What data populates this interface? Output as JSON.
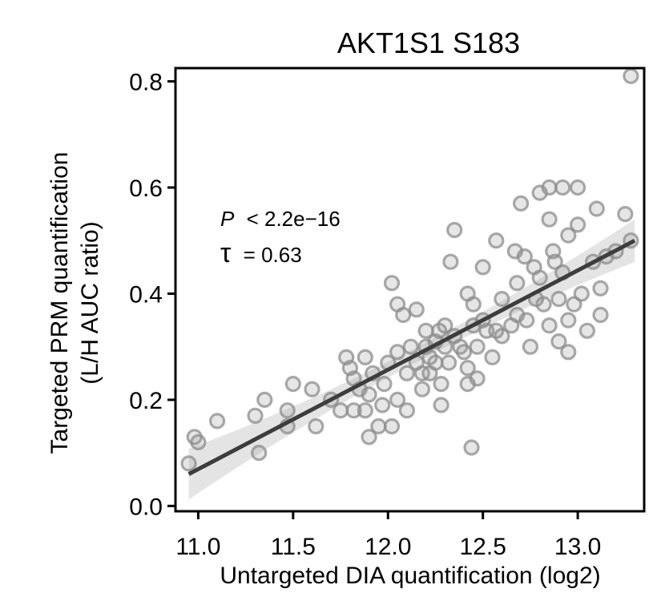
{
  "chart_data": {
    "type": "scatter",
    "title": "AKT1S1 S183",
    "xlabel": "Untargeted DIA quantification (log2)",
    "ylabel_line1": "Targeted PRM quantification",
    "ylabel_line2": "(L/H AUC ratio)",
    "xlim": [
      10.88,
      13.35
    ],
    "ylim": [
      -0.01,
      0.825
    ],
    "xticks": [
      11.0,
      11.5,
      12.0,
      12.5,
      13.0
    ],
    "xtick_labels": [
      "11.0",
      "11.5",
      "12.0",
      "12.5",
      "13.0"
    ],
    "yticks": [
      0.0,
      0.2,
      0.4,
      0.6,
      0.8
    ],
    "ytick_labels": [
      "0.0",
      "0.2",
      "0.4",
      "0.6",
      "0.8"
    ],
    "annotation": {
      "p_symbol": "P",
      "p_text": "< 2.2e−16",
      "tau_symbol": "τ",
      "tau_text": "= 0.63"
    },
    "fit_line": {
      "x": [
        10.95,
        13.3
      ],
      "y": [
        0.06,
        0.5
      ]
    },
    "colors": {
      "points": "#8c8c8c",
      "fit": "#3d3d3d",
      "band": "#d9d9d9",
      "axis": "#000000"
    },
    "points": [
      [
        10.95,
        0.08
      ],
      [
        10.98,
        0.13
      ],
      [
        11.0,
        0.12
      ],
      [
        11.1,
        0.16
      ],
      [
        11.3,
        0.17
      ],
      [
        11.32,
        0.1
      ],
      [
        11.35,
        0.2
      ],
      [
        11.47,
        0.18
      ],
      [
        11.47,
        0.15
      ],
      [
        11.5,
        0.23
      ],
      [
        11.6,
        0.22
      ],
      [
        11.62,
        0.15
      ],
      [
        11.7,
        0.2
      ],
      [
        11.75,
        0.18
      ],
      [
        11.78,
        0.28
      ],
      [
        11.8,
        0.26
      ],
      [
        11.82,
        0.24
      ],
      [
        11.82,
        0.18
      ],
      [
        11.85,
        0.22
      ],
      [
        11.88,
        0.28
      ],
      [
        11.88,
        0.18
      ],
      [
        11.9,
        0.21
      ],
      [
        11.9,
        0.13
      ],
      [
        11.92,
        0.25
      ],
      [
        11.95,
        0.15
      ],
      [
        11.97,
        0.19
      ],
      [
        11.98,
        0.23
      ],
      [
        12.0,
        0.27
      ],
      [
        12.02,
        0.42
      ],
      [
        12.02,
        0.15
      ],
      [
        12.05,
        0.38
      ],
      [
        12.05,
        0.29
      ],
      [
        12.05,
        0.2
      ],
      [
        12.08,
        0.36
      ],
      [
        12.1,
        0.25
      ],
      [
        12.1,
        0.18
      ],
      [
        12.12,
        0.3
      ],
      [
        12.15,
        0.37
      ],
      [
        12.15,
        0.27
      ],
      [
        12.18,
        0.25
      ],
      [
        12.18,
        0.22
      ],
      [
        12.2,
        0.33
      ],
      [
        12.2,
        0.3
      ],
      [
        12.22,
        0.28
      ],
      [
        12.22,
        0.25
      ],
      [
        12.25,
        0.31
      ],
      [
        12.25,
        0.27
      ],
      [
        12.27,
        0.33
      ],
      [
        12.28,
        0.23
      ],
      [
        12.28,
        0.19
      ],
      [
        12.3,
        0.34
      ],
      [
        12.3,
        0.3
      ],
      [
        12.32,
        0.27
      ],
      [
        12.33,
        0.46
      ],
      [
        12.35,
        0.52
      ],
      [
        12.35,
        0.32
      ],
      [
        12.38,
        0.3
      ],
      [
        12.4,
        0.29
      ],
      [
        12.42,
        0.4
      ],
      [
        12.42,
        0.26
      ],
      [
        12.42,
        0.23
      ],
      [
        12.44,
        0.11
      ],
      [
        12.45,
        0.38
      ],
      [
        12.45,
        0.34
      ],
      [
        12.47,
        0.3
      ],
      [
        12.47,
        0.24
      ],
      [
        12.5,
        0.45
      ],
      [
        12.5,
        0.35
      ],
      [
        12.52,
        0.33
      ],
      [
        12.55,
        0.28
      ],
      [
        12.57,
        0.5
      ],
      [
        12.57,
        0.33
      ],
      [
        12.6,
        0.39
      ],
      [
        12.6,
        0.32
      ],
      [
        12.65,
        0.34
      ],
      [
        12.67,
        0.48
      ],
      [
        12.68,
        0.42
      ],
      [
        12.68,
        0.36
      ],
      [
        12.7,
        0.57
      ],
      [
        12.72,
        0.47
      ],
      [
        12.73,
        0.35
      ],
      [
        12.75,
        0.3
      ],
      [
        12.77,
        0.45
      ],
      [
        12.78,
        0.39
      ],
      [
        12.8,
        0.59
      ],
      [
        12.8,
        0.43
      ],
      [
        12.82,
        0.38
      ],
      [
        12.85,
        0.6
      ],
      [
        12.85,
        0.54
      ],
      [
        12.85,
        0.34
      ],
      [
        12.87,
        0.48
      ],
      [
        12.88,
        0.46
      ],
      [
        12.9,
        0.39
      ],
      [
        12.9,
        0.31
      ],
      [
        12.92,
        0.6
      ],
      [
        12.92,
        0.44
      ],
      [
        12.95,
        0.51
      ],
      [
        12.95,
        0.35
      ],
      [
        12.95,
        0.29
      ],
      [
        12.98,
        0.38
      ],
      [
        13.0,
        0.6
      ],
      [
        13.0,
        0.53
      ],
      [
        13.02,
        0.4
      ],
      [
        13.05,
        0.33
      ],
      [
        13.08,
        0.46
      ],
      [
        13.1,
        0.56
      ],
      [
        13.12,
        0.36
      ],
      [
        13.12,
        0.41
      ],
      [
        13.15,
        0.47
      ],
      [
        13.2,
        0.48
      ],
      [
        13.25,
        0.55
      ],
      [
        13.28,
        0.5
      ],
      [
        13.28,
        0.81
      ]
    ]
  }
}
